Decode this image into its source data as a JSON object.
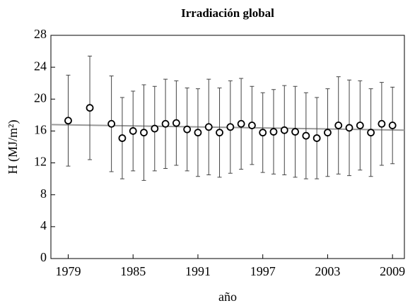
{
  "chart_data": {
    "type": "scatter",
    "title": "Irradiación global",
    "xlabel": "año",
    "ylabel": "H (MJ/m²)",
    "x": [
      1979,
      1981,
      1983,
      1984,
      1985,
      1986,
      1987,
      1988,
      1989,
      1990,
      1991,
      1992,
      1993,
      1994,
      1995,
      1996,
      1997,
      1998,
      1999,
      2000,
      2001,
      2002,
      2003,
      2004,
      2005,
      2006,
      2007,
      2008,
      2009
    ],
    "series": [
      {
        "color": "#000000",
        "values": [
          17.3,
          18.9,
          16.9,
          15.1,
          16.0,
          15.8,
          16.3,
          16.9,
          17.0,
          16.2,
          15.8,
          16.5,
          15.8,
          16.5,
          16.9,
          16.7,
          15.8,
          15.9,
          16.1,
          15.9,
          15.4,
          15.1,
          15.8,
          16.7,
          16.4,
          16.7,
          15.8,
          16.9,
          16.7
        ],
        "errors": [
          5.7,
          6.5,
          6.0,
          5.1,
          5.0,
          6.0,
          5.3,
          5.6,
          5.3,
          5.2,
          5.5,
          6.0,
          5.6,
          5.8,
          5.7,
          4.9,
          5.0,
          5.3,
          5.6,
          5.7,
          5.4,
          5.1,
          5.5,
          6.1,
          6.0,
          5.6,
          5.5,
          5.2,
          4.8
        ]
      }
    ],
    "trend": {
      "color": "#999999",
      "x": [
        1977.4,
        2010.1
      ],
      "values": [
        16.8,
        16.1
      ]
    },
    "xlim": [
      1977.4,
      2010.1
    ],
    "ylim": [
      0,
      28
    ],
    "xticks": [
      1979,
      1985,
      1991,
      1997,
      2003,
      2009
    ],
    "yticks": [
      0,
      4,
      8,
      12,
      16,
      20,
      24,
      28
    ]
  }
}
